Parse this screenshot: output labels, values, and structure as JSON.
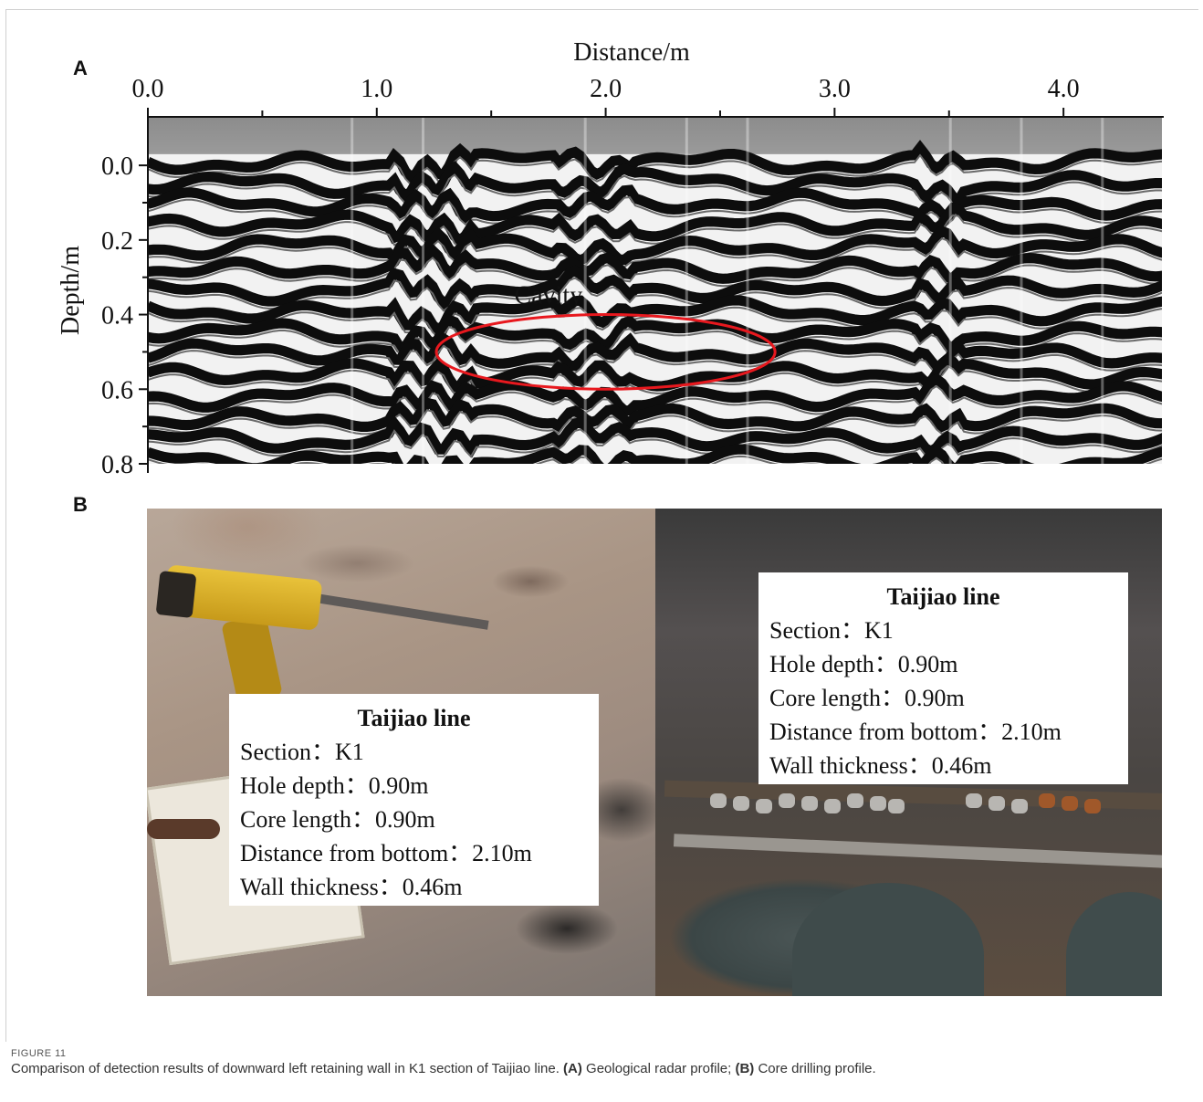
{
  "panel_a": {
    "label": "A",
    "x_title": "Distance/m",
    "y_title": "Depth/m",
    "x_ticks": [
      "0.0",
      "1.0",
      "2.0",
      "3.0",
      "4.0"
    ],
    "y_ticks": [
      "0.0",
      "0.2",
      "0.4",
      "0.6",
      "0.8"
    ],
    "annotation": "Cavity"
  },
  "chart_data": {
    "type": "heatmap",
    "xlabel": "Distance/m",
    "ylabel": "Depth/m",
    "xlim": [
      0.0,
      4.43
    ],
    "ylim": [
      0.8,
      -0.13
    ],
    "x_ticks": [
      0.0,
      1.0,
      2.0,
      3.0,
      4.0
    ],
    "y_ticks": [
      0.0,
      0.2,
      0.4,
      0.6,
      0.8
    ],
    "annotations": [
      {
        "text": "Cavity",
        "shape": "ellipse",
        "center_x": 2.0,
        "center_y": 0.5,
        "half_width_x": 0.74,
        "half_height_y": 0.1,
        "color": "#e8181e"
      }
    ]
  },
  "panel_b": {
    "label": "B",
    "left_box": {
      "title": "Taijiao line",
      "lines": [
        "Section：K1",
        "Hole depth：0.90m",
        "Core length：0.90m",
        "Distance from bottom：2.10m",
        "Wall thickness：0.46m"
      ]
    },
    "right_box": {
      "title": "Taijiao line",
      "lines": [
        "Section：K1",
        "Hole depth：0.90m",
        "Core length：0.90m",
        "Distance from bottom：2.10m",
        "Wall thickness：0.46m"
      ]
    }
  },
  "caption": {
    "figure_label": "FIGURE 11",
    "text_start": "Comparison of detection results of downward left retaining wall in K1 section of Taijiao line. ",
    "a_label": "(A)",
    "a_text": " Geological radar profile; ",
    "b_label": "(B)",
    "b_text": " Core drilling profile."
  },
  "colors": {
    "annotation": "#e8181e",
    "radar_background": "#8a8a8a",
    "text": "#111111"
  }
}
